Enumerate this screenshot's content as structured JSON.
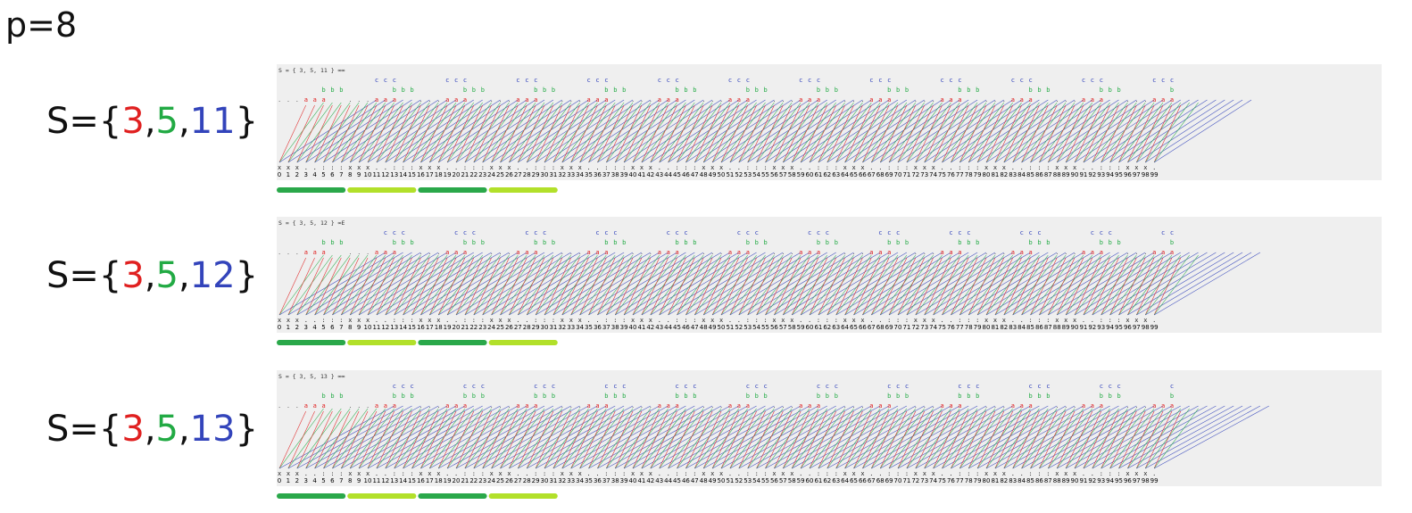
{
  "p_label": "p=8",
  "period": 8,
  "n_max": 99,
  "colors": {
    "a": "#e02020",
    "b": "#22aa44",
    "c": "#3344bb",
    "dark_bar": "#2aa84a",
    "light_bar": "#b2e02a",
    "panel_bg": "#efefef"
  },
  "rows": [
    {
      "caption": "S = { 3, 5, 11 } ∞∞",
      "label": {
        "open": "S={",
        "a": "3",
        "sep1": ",",
        "b": "5",
        "sep2": ",",
        "c": "11",
        "close": "}"
      },
      "generators": [
        3,
        5,
        11
      ]
    },
    {
      "caption": "S = { 3, 5, 12 } ∞E",
      "label": {
        "open": "S={",
        "a": "3",
        "sep1": ",",
        "b": "5",
        "sep2": ",",
        "c": "12",
        "close": "}"
      },
      "generators": [
        3,
        5,
        12
      ]
    },
    {
      "caption": "S = { 3, 5, 13 } ∞∞",
      "label": {
        "open": "S={",
        "a": "3",
        "sep1": ",",
        "b": "5",
        "sep2": ",",
        "c": "13",
        "close": "}"
      },
      "generators": [
        3,
        5,
        13
      ]
    }
  ],
  "diagram_glyphs": {
    "x_mark": "x",
    "dot_mark": ".",
    "colon_mark": ":",
    "a_mark": "a",
    "b_mark": "b",
    "c_mark": "c"
  }
}
